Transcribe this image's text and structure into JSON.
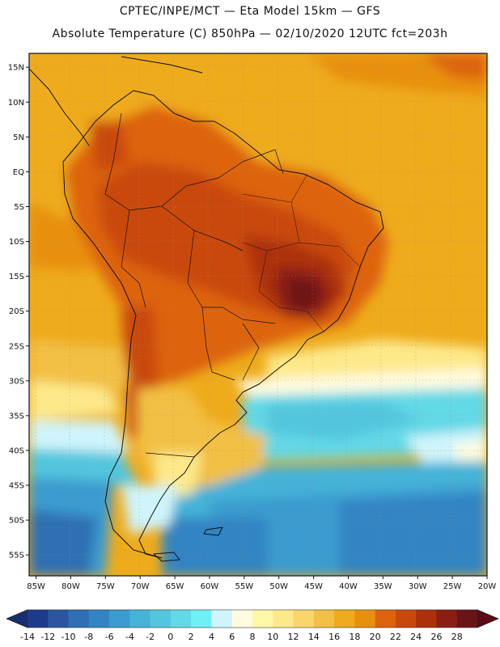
{
  "title": {
    "line1": "CPTEC/INPE/MCT —  Eta Model 15km — GFS",
    "line2": "Absolute Temperature (C) 850hPa — 02/10/2020 12UTC fct=203h"
  },
  "lat_axis": {
    "labels": [
      "15N",
      "10N",
      "5N",
      "EQ",
      "5S",
      "10S",
      "15S",
      "20S",
      "25S",
      "30S",
      "35S",
      "40S",
      "45S",
      "50S",
      "55S"
    ],
    "values": [
      15,
      10,
      5,
      0,
      -5,
      -10,
      -15,
      -20,
      -25,
      -30,
      -35,
      -40,
      -45,
      -50,
      -55
    ],
    "range": [
      17,
      -58
    ]
  },
  "lon_axis": {
    "labels": [
      "85W",
      "80W",
      "75W",
      "70W",
      "65W",
      "60W",
      "55W",
      "50W",
      "45W",
      "40W",
      "35W",
      "30W",
      "25W",
      "20W"
    ],
    "values": [
      -85,
      -80,
      -75,
      -70,
      -65,
      -60,
      -55,
      -50,
      -45,
      -40,
      -35,
      -30,
      -25,
      -20
    ],
    "range": [
      -86,
      -20
    ]
  },
  "colorbar": {
    "labels": [
      "-14",
      "-12",
      "-10",
      "-8",
      "-6",
      "-4",
      "-2",
      "0",
      "2",
      "4",
      "6",
      "8",
      "10",
      "12",
      "14",
      "16",
      "18",
      "20",
      "22",
      "24",
      "26",
      "28"
    ],
    "colors": [
      "#1c3b8a",
      "#2a56a0",
      "#2f6fb3",
      "#3384c2",
      "#3a9bcf",
      "#45b2d8",
      "#52c6de",
      "#63d8e6",
      "#6ff0f6",
      "#cff4fb",
      "#fffbe0",
      "#fff7a8",
      "#fde98a",
      "#f9d66a",
      "#f2c044",
      "#eeab1c",
      "#e8900e",
      "#dd640a",
      "#c9480c",
      "#ac300c",
      "#8a1e14",
      "#6a1418"
    ],
    "under_color": "#172e70",
    "over_color": "#5a0b17"
  }
}
